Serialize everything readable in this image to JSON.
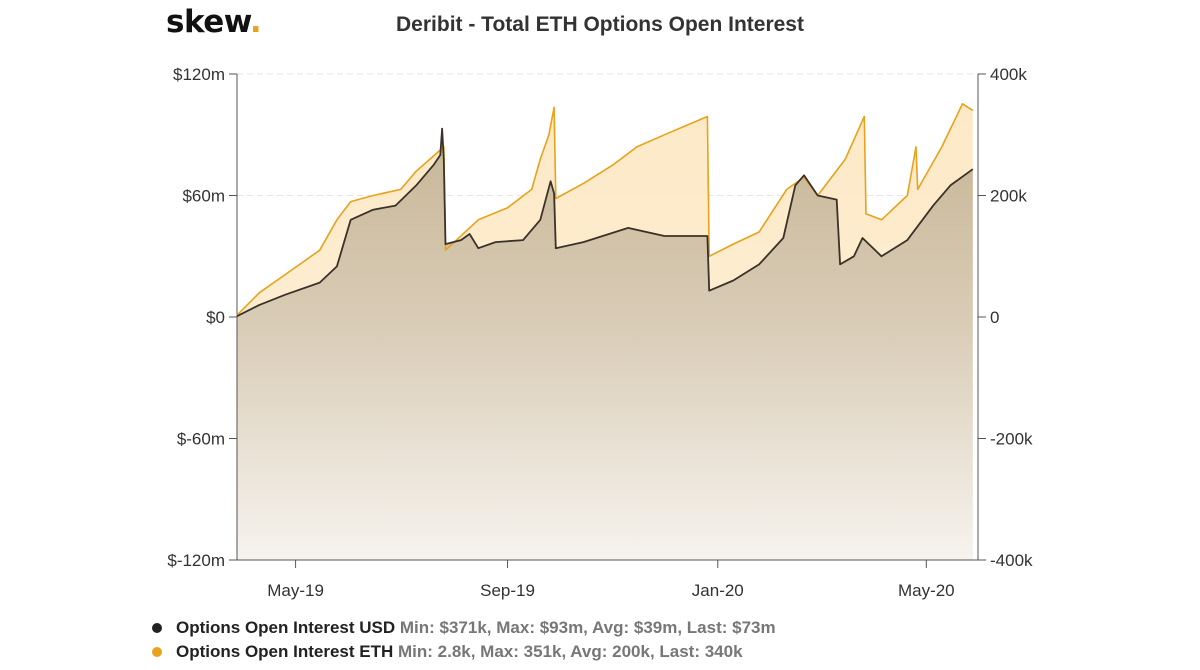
{
  "logo": {
    "text": "skew",
    "dot": "."
  },
  "chart_data": {
    "type": "area",
    "title": "Deribit - Total ETH Options Open Interest",
    "x_ticks": [
      "May-19",
      "Sep-19",
      "Jan-20",
      "May-20"
    ],
    "x_range": [
      "2019-03-28",
      "2020-05-31"
    ],
    "y_left": {
      "ticks": [
        "$120m",
        "$60m",
        "$0",
        "$-60m",
        "$-120m"
      ],
      "range": [
        -120,
        120
      ],
      "unit": "m USD"
    },
    "y_right": {
      "ticks": [
        "400k",
        "200k",
        "0",
        "-200k",
        "-400k"
      ],
      "range": [
        -400,
        400
      ],
      "unit": "k ETH"
    },
    "grid": "horizontal dashed",
    "legend_position": "bottom-left",
    "series": [
      {
        "name": "Options Open Interest USD",
        "axis": "left",
        "color": "#222222",
        "stats": "Min: $371k, Max: $93m, Avg: $39m, Last: $73m",
        "points": [
          [
            "2019-03-28",
            0.4
          ],
          [
            "2019-04-10",
            6
          ],
          [
            "2019-04-25",
            11
          ],
          [
            "2019-05-15",
            17
          ],
          [
            "2019-05-25",
            25
          ],
          [
            "2019-06-02",
            48
          ],
          [
            "2019-06-15",
            53
          ],
          [
            "2019-06-28",
            55
          ],
          [
            "2019-07-10",
            65
          ],
          [
            "2019-07-20",
            75
          ],
          [
            "2019-07-24",
            80
          ],
          [
            "2019-07-25",
            93
          ],
          [
            "2019-07-26",
            78
          ],
          [
            "2019-07-27",
            36
          ],
          [
            "2019-08-05",
            38
          ],
          [
            "2019-08-10",
            41
          ],
          [
            "2019-08-15",
            34
          ],
          [
            "2019-08-25",
            37
          ],
          [
            "2019-09-10",
            38
          ],
          [
            "2019-09-20",
            48
          ],
          [
            "2019-09-26",
            67
          ],
          [
            "2019-09-28",
            61
          ],
          [
            "2019-09-29",
            34
          ],
          [
            "2019-10-15",
            37
          ],
          [
            "2019-11-10",
            44
          ],
          [
            "2019-12-01",
            40
          ],
          [
            "2019-12-26",
            40
          ],
          [
            "2019-12-27",
            13
          ],
          [
            "2020-01-10",
            18
          ],
          [
            "2020-01-25",
            26
          ],
          [
            "2020-02-08",
            39
          ],
          [
            "2020-02-15",
            65
          ],
          [
            "2020-02-20",
            70
          ],
          [
            "2020-02-28",
            60
          ],
          [
            "2020-03-10",
            58
          ],
          [
            "2020-03-12",
            26
          ],
          [
            "2020-03-20",
            30
          ],
          [
            "2020-03-25",
            39
          ],
          [
            "2020-04-05",
            30
          ],
          [
            "2020-04-20",
            38
          ],
          [
            "2020-05-05",
            55
          ],
          [
            "2020-05-15",
            65
          ],
          [
            "2020-05-28",
            73
          ]
        ]
      },
      {
        "name": "Options Open Interest ETH",
        "axis": "right",
        "color": "#e8a21b",
        "stats": "Min: 2.8k, Max: 351k, Avg: 200k, Last: 340k",
        "points": [
          [
            "2019-03-28",
            3
          ],
          [
            "2019-04-10",
            40
          ],
          [
            "2019-04-25",
            70
          ],
          [
            "2019-05-15",
            110
          ],
          [
            "2019-05-25",
            160
          ],
          [
            "2019-06-02",
            190
          ],
          [
            "2019-06-15",
            200
          ],
          [
            "2019-07-01",
            210
          ],
          [
            "2019-07-10",
            240
          ],
          [
            "2019-07-20",
            265
          ],
          [
            "2019-07-26",
            280
          ],
          [
            "2019-07-27",
            110
          ],
          [
            "2019-08-15",
            160
          ],
          [
            "2019-09-01",
            180
          ],
          [
            "2019-09-15",
            210
          ],
          [
            "2019-09-20",
            260
          ],
          [
            "2019-09-25",
            300
          ],
          [
            "2019-09-28",
            345
          ],
          [
            "2019-09-29",
            195
          ],
          [
            "2019-10-15",
            220
          ],
          [
            "2019-11-01",
            250
          ],
          [
            "2019-11-15",
            280
          ],
          [
            "2019-12-01",
            300
          ],
          [
            "2019-12-26",
            330
          ],
          [
            "2019-12-27",
            100
          ],
          [
            "2020-01-10",
            120
          ],
          [
            "2020-01-25",
            140
          ],
          [
            "2020-02-10",
            210
          ],
          [
            "2020-02-20",
            230
          ],
          [
            "2020-02-28",
            200
          ],
          [
            "2020-03-15",
            260
          ],
          [
            "2020-03-26",
            330
          ],
          [
            "2020-03-27",
            170
          ],
          [
            "2020-04-05",
            160
          ],
          [
            "2020-04-20",
            200
          ],
          [
            "2020-04-25",
            280
          ],
          [
            "2020-04-26",
            210
          ],
          [
            "2020-05-10",
            280
          ],
          [
            "2020-05-22",
            351
          ],
          [
            "2020-05-28",
            340
          ]
        ]
      }
    ]
  }
}
